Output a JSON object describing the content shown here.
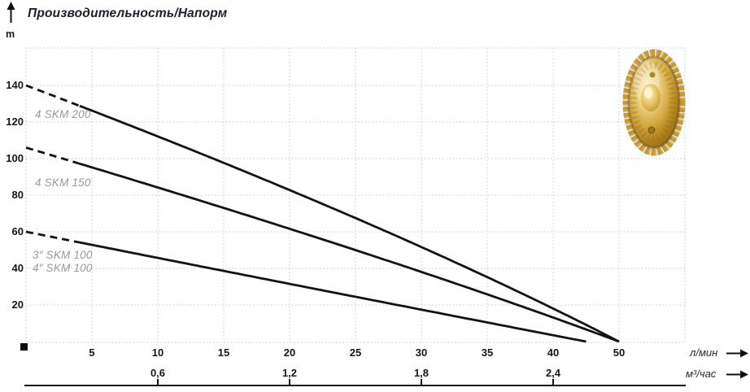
{
  "title": "Производительность/Напорм",
  "y_axis": {
    "unit": "m",
    "ticks": [
      "140",
      "120",
      "100",
      "80",
      "60",
      "40",
      "20"
    ]
  },
  "x_axis_primary": {
    "unit": "л/мин",
    "ticks": [
      "5",
      "10",
      "15",
      "20",
      "25",
      "30",
      "35",
      "40",
      "50"
    ]
  },
  "x_axis_secondary": {
    "unit": "м³/час",
    "ticks": [
      "0,6",
      "1,2",
      "1,8",
      "2,4"
    ]
  },
  "colors": {
    "curve": "#131313",
    "grid": "#c8c8c8",
    "curve_label": "#999999",
    "text": "#15151c",
    "impeller_gold": "#d4ab45"
  },
  "chart_data": {
    "type": "line",
    "title": "Производительность/Напорм",
    "ylabel": "m",
    "xlabel": "л/мин",
    "x2label": "м³/час",
    "xlim": [
      0,
      55
    ],
    "ylim": [
      0,
      160
    ],
    "grid": true,
    "x_gridline_step_lmin": 5,
    "y_gridline_step_m": 20,
    "x2_conversion": "10 л/мин = 0,6 м³/час",
    "series": [
      {
        "name": "4 SKM 200",
        "labels": [
          "4 SKM 200"
        ],
        "points": [
          [
            0,
            140
          ],
          [
            25,
            67.5
          ],
          [
            50,
            0
          ]
        ],
        "dashed_until_lmin": 4,
        "style": "solid-black, dashed near zero flow"
      },
      {
        "name": "4 SKM 150",
        "labels": [
          "4 SKM 150"
        ],
        "points": [
          [
            0,
            106
          ],
          [
            25,
            50
          ],
          [
            50,
            0
          ]
        ],
        "dashed_until_lmin": 4,
        "style": "solid-black, dashed near zero flow"
      },
      {
        "name": "3″/4″ SKM 100",
        "labels": [
          "3″ SKM 100",
          "4″ SKM 100"
        ],
        "points": [
          [
            0,
            60
          ],
          [
            22.5,
            28
          ],
          [
            45,
            0
          ]
        ],
        "dashed_until_lmin": 4,
        "style": "solid-black, dashed near zero flow"
      }
    ]
  }
}
